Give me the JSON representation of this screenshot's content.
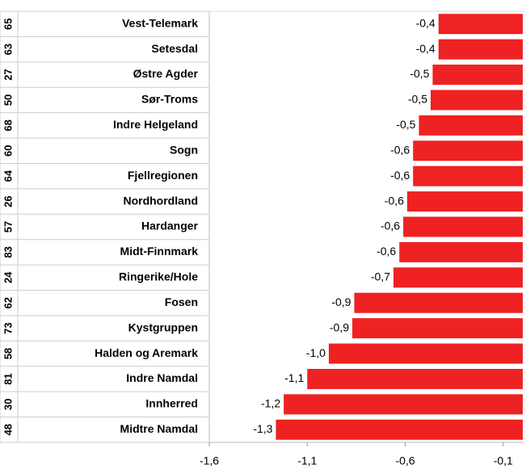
{
  "chart_data": {
    "type": "bar",
    "orientation": "horizontal",
    "codes": [
      "65",
      "63",
      "27",
      "50",
      "68",
      "60",
      "64",
      "26",
      "57",
      "83",
      "24",
      "62",
      "73",
      "58",
      "81",
      "30",
      "48"
    ],
    "categories": [
      "Vest-Telemark",
      "Setesdal",
      "Østre Agder",
      "Sør-Troms",
      "Indre Helgeland",
      "Sogn",
      "Fjellregionen",
      "Nordhordland",
      "Hardanger",
      "Midt-Finnmark",
      "Ringerike/Hole",
      "Fosen",
      "Kystgruppen",
      "Halden og Aremark",
      "Indre Namdal",
      "Innherred",
      "Midtre Namdal"
    ],
    "values": [
      -0.43,
      -0.43,
      -0.46,
      -0.47,
      -0.53,
      -0.56,
      -0.56,
      -0.59,
      -0.61,
      -0.63,
      -0.66,
      -0.86,
      -0.87,
      -0.99,
      -1.1,
      -1.22,
      -1.26
    ],
    "value_labels": [
      "-0,4",
      "-0,4",
      "-0,5",
      "-0,5",
      "-0,5",
      "-0,6",
      "-0,6",
      "-0,6",
      "-0,6",
      "-0,6",
      "-0,7",
      "-0,9",
      "-0,9",
      "-1,0",
      "-1,1",
      "-1,2",
      "-1,3"
    ],
    "color": "#ee2222",
    "xlim": [
      -1.6,
      0
    ],
    "xticks": [
      {
        "value": -1.6,
        "label": "-1,6"
      },
      {
        "value": -1.1,
        "label": "-1,1"
      },
      {
        "value": -0.6,
        "label": "-0,6"
      },
      {
        "value": -0.1,
        "label": "-0,1"
      }
    ]
  }
}
